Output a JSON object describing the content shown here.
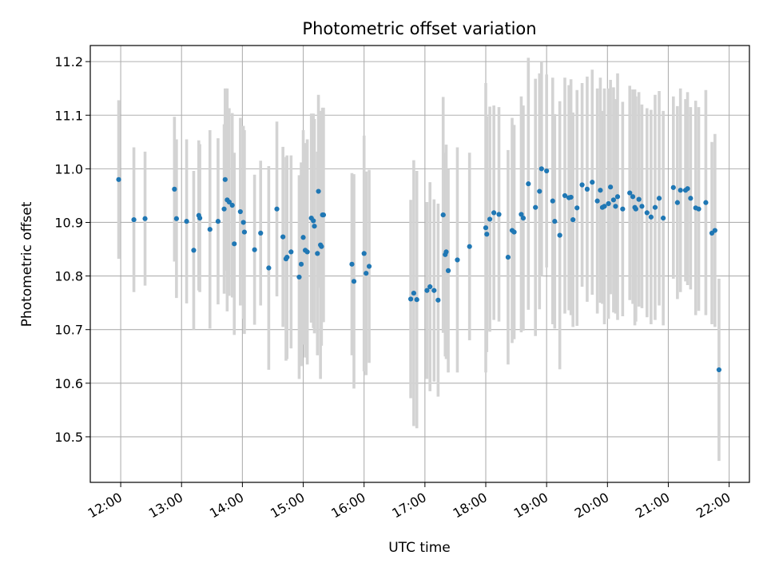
{
  "chart_data": {
    "type": "scatter",
    "title": "Photometric offset variation",
    "xlabel": "UTC time",
    "ylabel": "Photometric offset",
    "x_ticks": [
      "12:00",
      "13:00",
      "14:00",
      "15:00",
      "16:00",
      "17:00",
      "18:00",
      "19:00",
      "20:00",
      "21:00",
      "22:00"
    ],
    "y_ticks": [
      "10.5",
      "10.6",
      "10.7",
      "10.8",
      "10.9",
      "11.0",
      "11.1",
      "11.2"
    ],
    "xlim": [
      "11:30",
      "22:20"
    ],
    "ylim": [
      10.415,
      11.23
    ],
    "grid": true,
    "colors": {
      "point": "#1f77b4",
      "errorbar": "#d3d3d3",
      "grid": "#b0b0b0"
    },
    "series": [
      {
        "x": [
          "11:58",
          "12:13",
          "12:24",
          "12:53",
          "12:55",
          "13:05",
          "13:12",
          "13:17",
          "13:18",
          "13:28",
          "13:36",
          "13:42",
          "13:43",
          "13:45",
          "13:47",
          "13:50",
          "13:52",
          "13:58",
          "14:01",
          "14:02",
          "14:12",
          "14:18",
          "14:26",
          "14:34",
          "14:40",
          "14:43",
          "14:44",
          "14:48",
          "14:56",
          "14:58",
          "15:00",
          "15:02",
          "15:04",
          "15:08",
          "15:10",
          "15:11",
          "15:14",
          "15:15",
          "15:17",
          "15:18",
          "15:19",
          "15:20",
          "15:48",
          "15:50",
          "16:00",
          "16:02",
          "16:05",
          "16:46",
          "16:49",
          "16:52",
          "17:02",
          "17:05",
          "17:09",
          "17:13",
          "17:18",
          "17:20",
          "17:21",
          "17:23",
          "17:32",
          "17:44",
          "18:00",
          "18:01",
          "18:04",
          "18:08",
          "18:13",
          "18:22",
          "18:26",
          "18:28",
          "18:35",
          "18:37",
          "18:42",
          "18:49",
          "18:53",
          "18:55",
          "19:00",
          "19:06",
          "19:08",
          "19:13",
          "19:18",
          "19:22",
          "19:24",
          "19:26",
          "19:30",
          "19:35",
          "19:40",
          "19:45",
          "19:50",
          "19:53",
          "19:55",
          "19:57",
          "20:01",
          "20:03",
          "20:06",
          "20:08",
          "20:10",
          "20:15",
          "20:22",
          "20:25",
          "20:27",
          "20:28",
          "20:31",
          "20:34",
          "20:39",
          "20:43",
          "20:47",
          "20:51",
          "20:55",
          "21:05",
          "21:09",
          "21:12",
          "21:17",
          "21:19",
          "21:22",
          "21:27",
          "21:30",
          "21:37",
          "21:43",
          "21:46",
          "21:50"
        ],
        "y": [
          10.98,
          10.905,
          10.907,
          10.962,
          10.907,
          10.902,
          10.848,
          10.913,
          10.908,
          10.887,
          10.902,
          10.925,
          10.98,
          10.942,
          10.938,
          10.932,
          10.86,
          10.92,
          10.9,
          10.882,
          10.849,
          10.88,
          10.815,
          10.925,
          10.873,
          10.832,
          10.835,
          10.845,
          10.798,
          10.822,
          10.872,
          10.848,
          10.845,
          10.908,
          10.903,
          10.893,
          10.842,
          10.958,
          10.858,
          10.855,
          10.914,
          10.914,
          10.822,
          10.79,
          10.842,
          10.805,
          10.818,
          10.757,
          10.768,
          10.756,
          10.773,
          10.78,
          10.773,
          10.755,
          10.914,
          10.84,
          10.845,
          10.81,
          10.83,
          10.855,
          10.89,
          10.878,
          10.906,
          10.918,
          10.915,
          10.835,
          10.885,
          10.882,
          10.915,
          10.908,
          10.972,
          10.928,
          10.958,
          11.0,
          10.996,
          10.94,
          10.902,
          10.876,
          10.95,
          10.946,
          10.947,
          10.905,
          10.927,
          10.97,
          10.962,
          10.975,
          10.94,
          10.96,
          10.928,
          10.93,
          10.935,
          10.966,
          10.942,
          10.93,
          10.948,
          10.925,
          10.955,
          10.948,
          10.928,
          10.925,
          10.943,
          10.93,
          10.918,
          10.91,
          10.928,
          10.945,
          10.908,
          10.965,
          10.937,
          10.96,
          10.96,
          10.963,
          10.945,
          10.927,
          10.925,
          10.937,
          10.88,
          10.885,
          10.625
        ],
        "err": [
          0.148,
          0.135,
          0.125,
          0.135,
          0.148,
          0.153,
          0.148,
          0.14,
          0.138,
          0.185,
          0.155,
          0.158,
          0.17,
          0.208,
          0.175,
          0.172,
          0.17,
          0.175,
          0.18,
          0.19,
          0.14,
          0.135,
          0.19,
          0.163,
          0.168,
          0.19,
          0.19,
          0.18,
          0.19,
          0.19,
          0.2,
          0.2,
          0.21,
          0.195,
          0.2,
          0.2,
          0.19,
          0.18,
          0.25,
          0.185,
          0.2,
          0.2,
          0.17,
          0.2,
          0.22,
          0.19,
          0.18,
          0.185,
          0.248,
          0.24,
          0.165,
          0.195,
          0.17,
          0.18,
          0.22,
          0.19,
          0.2,
          0.19,
          0.21,
          0.175,
          0.27,
          0.22,
          0.21,
          0.2,
          0.2,
          0.2,
          0.21,
          0.2,
          0.22,
          0.21,
          0.235,
          0.24,
          0.22,
          0.2,
          0.18,
          0.23,
          0.2,
          0.25,
          0.22,
          0.21,
          0.22,
          0.2,
          0.22,
          0.19,
          0.21,
          0.21,
          0.21,
          0.21,
          0.18,
          0.22,
          0.215,
          0.2,
          0.21,
          0.2,
          0.23,
          0.2,
          0.2,
          0.2,
          0.22,
          0.21,
          0.2,
          0.19,
          0.195,
          0.2,
          0.21,
          0.2,
          0.2,
          0.17,
          0.18,
          0.19,
          0.17,
          0.18,
          0.17,
          0.2,
          0.19,
          0.21,
          0.17,
          0.18,
          0.17
        ]
      }
    ]
  }
}
